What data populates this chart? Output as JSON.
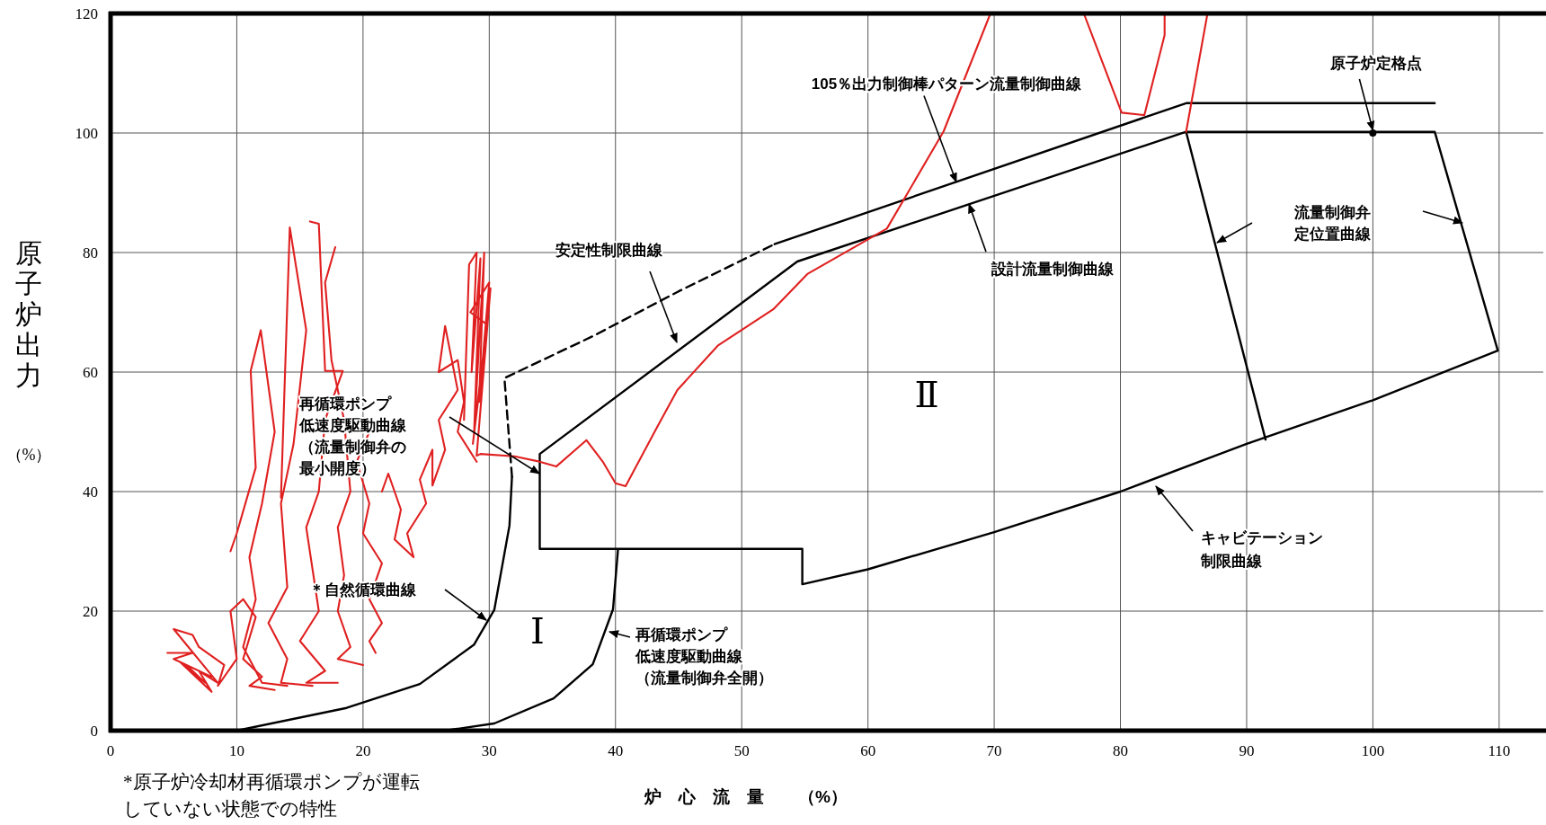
{
  "chart_data": {
    "type": "line",
    "xlabel": "炉　心　流　量　　（%）",
    "ylabel": "原子炉出力（%）",
    "xlim": [
      0,
      113.5
    ],
    "ylim": [
      0,
      120
    ],
    "xticks": [
      0,
      10,
      20,
      30,
      40,
      50,
      60,
      70,
      80,
      90,
      100,
      110
    ],
    "yticks": [
      0,
      20,
      40,
      60,
      80,
      100,
      120
    ],
    "grid": true,
    "series": [
      {
        "color": "#000000",
        "x": [
          10,
          18.7,
          24.5,
          28.8,
          30.4,
          31.6,
          31.8,
          null,
          52.6,
          85.2,
          104.9,
          null,
          34,
          54.4,
          85.2,
          104.9,
          109.9,
          null,
          109.9,
          100,
          90,
          80,
          70,
          60,
          54.8,
          54.8,
          34,
          34,
          null,
          85.2,
          91.5,
          null,
          26.5,
          30.4,
          35.1,
          38.2,
          39.8,
          40.2
        ],
        "values": [
          0,
          3.8,
          7.8,
          14.4,
          20.2,
          34.3,
          42.5,
          null,
          81.4,
          105,
          105,
          null,
          46.3,
          78.5,
          100.2,
          100.2,
          63.6,
          null,
          63.6,
          55.3,
          48,
          40,
          33.2,
          27,
          24.5,
          30.4,
          30.4,
          46.3,
          null,
          100.2,
          48.7,
          null,
          0,
          1.2,
          5.4,
          11.1,
          20.3,
          30.4
        ]
      },
      {
        "color": "#000000",
        "line_style": "dashed",
        "x": [
          31.8,
          31.2,
          38.2,
          45,
          52.6
        ],
        "values": [
          42.5,
          59,
          66,
          73.5,
          81.4
        ]
      },
      {
        "type": "scatter",
        "marker": "circle",
        "color": "#000000",
        "x": [
          100
        ],
        "values": [
          100
        ]
      },
      {
        "color": "#e02020",
        "x": [
          4.5,
          6.5,
          5,
          8,
          6,
          7.5,
          5.5,
          8,
          7,
          8.5,
          5,
          6.5,
          7,
          9,
          8.5,
          10,
          9.5,
          10.5,
          11.5,
          10.5,
          12,
          11,
          13
        ],
        "values": [
          13,
          13,
          12,
          9,
          11,
          8,
          11.5,
          6.5,
          10,
          8,
          17,
          16,
          14,
          11,
          7.5,
          12,
          20,
          22,
          19,
          12,
          9,
          7.5,
          6.8
        ]
      },
      {
        "color": "#e02020",
        "x": [
          9.5,
          10,
          11.5,
          11.1,
          11.9,
          13,
          12,
          11,
          11.5,
          10.5,
          12,
          14
        ],
        "values": [
          30,
          33,
          44,
          60.2,
          67,
          50,
          38,
          29,
          22,
          14,
          8,
          7.5
        ]
      },
      {
        "color": "#e02020",
        "x": [
          13.5,
          14.2,
          15.5,
          14.5,
          13.5,
          14,
          12.5,
          14,
          13.5,
          16
        ],
        "values": [
          39,
          84.2,
          67,
          48,
          38,
          24,
          18,
          12,
          8,
          7.5
        ]
      },
      {
        "color": "#e02020",
        "x": [
          15.8,
          16.5,
          17,
          18.4,
          17,
          16.5,
          15.5,
          16.5,
          15,
          17,
          15.5,
          18
        ],
        "values": [
          85.2,
          84.8,
          60.2,
          60.2,
          52,
          40,
          34,
          20,
          15,
          10,
          8,
          8
        ]
      },
      {
        "color": "#e02020",
        "x": [
          17.8,
          17,
          17.5,
          18.5,
          19,
          18,
          18.5,
          18,
          19,
          18,
          20
        ],
        "values": [
          80.9,
          75,
          62,
          52,
          40,
          34,
          26,
          20,
          14,
          12,
          11
        ]
      },
      {
        "color": "#e02020",
        "x": [
          20.5,
          19.5,
          20.5,
          20,
          21.5,
          20.5,
          21.5,
          20.5,
          21
        ],
        "values": [
          50,
          45,
          38,
          33,
          28,
          22,
          18,
          15,
          13
        ]
      },
      {
        "color": "#e02020",
        "x": [
          21.5,
          22,
          23,
          22.5,
          24,
          23.5,
          25,
          24.5,
          25.5,
          25.5,
          26.5,
          26,
          27.5,
          26.5,
          26,
          27.5,
          28,
          27.5,
          29
        ],
        "values": [
          40,
          43,
          37,
          32,
          29,
          33,
          38,
          42,
          47,
          41,
          47,
          52,
          57,
          67.7,
          60,
          62,
          55,
          50,
          45
        ]
      },
      {
        "color": "#e02020",
        "x": [
          28,
          28.4,
          29,
          28.6,
          29.3,
          28.8,
          29.6,
          29.2,
          30,
          28.5,
          29.8,
          28.7,
          29.5,
          30.1,
          29,
          29.3,
          32,
          33.8,
          35.3,
          37.7,
          39,
          40,
          40.8,
          43.3,
          44.9,
          48.1,
          52.5,
          55.2,
          61.5,
          66,
          69.7
        ],
        "values": [
          52,
          78,
          80,
          60,
          79,
          50,
          80,
          55,
          75,
          70,
          68,
          48,
          62,
          74,
          46,
          46.3,
          45.9,
          45.1,
          44.2,
          48.6,
          45,
          41.4,
          40.9,
          50.8,
          57,
          64.4,
          70.5,
          76.4,
          84,
          100.3,
          120
        ]
      },
      {
        "color": "#e02020",
        "x": [
          77.1,
          80.1,
          81.9,
          83.5,
          83.5
        ],
        "values": [
          120,
          103.4,
          103,
          116.4,
          120
        ]
      },
      {
        "color": "#e02020",
        "x": [
          85.2,
          86.9
        ],
        "values": [
          100.2,
          120
        ]
      }
    ],
    "annotations": [
      {
        "text": "105％出力制御棒パターン流量制御曲線",
        "x": 67,
        "y": 91.8
      },
      {
        "text": "原子炉定格点",
        "x": 100,
        "y": 100
      },
      "流量制御弁定位置曲線",
      {
        "text": "設計流量制御曲線",
        "x": 68,
        "y": 88.1
      },
      "安定性制限曲線",
      "再循環ポンプ低速度駆動曲線（流量制御弁の最小開度）",
      "＊自然循環曲線",
      "再循環ポンプ低速度駆動曲線（流量制御弁全開）",
      "キャビテーション制限曲線",
      "Ⅱ",
      "Ⅰ",
      "*原子炉冷却材再循環ポンプが運転していない状態での特性"
    ]
  }
}
